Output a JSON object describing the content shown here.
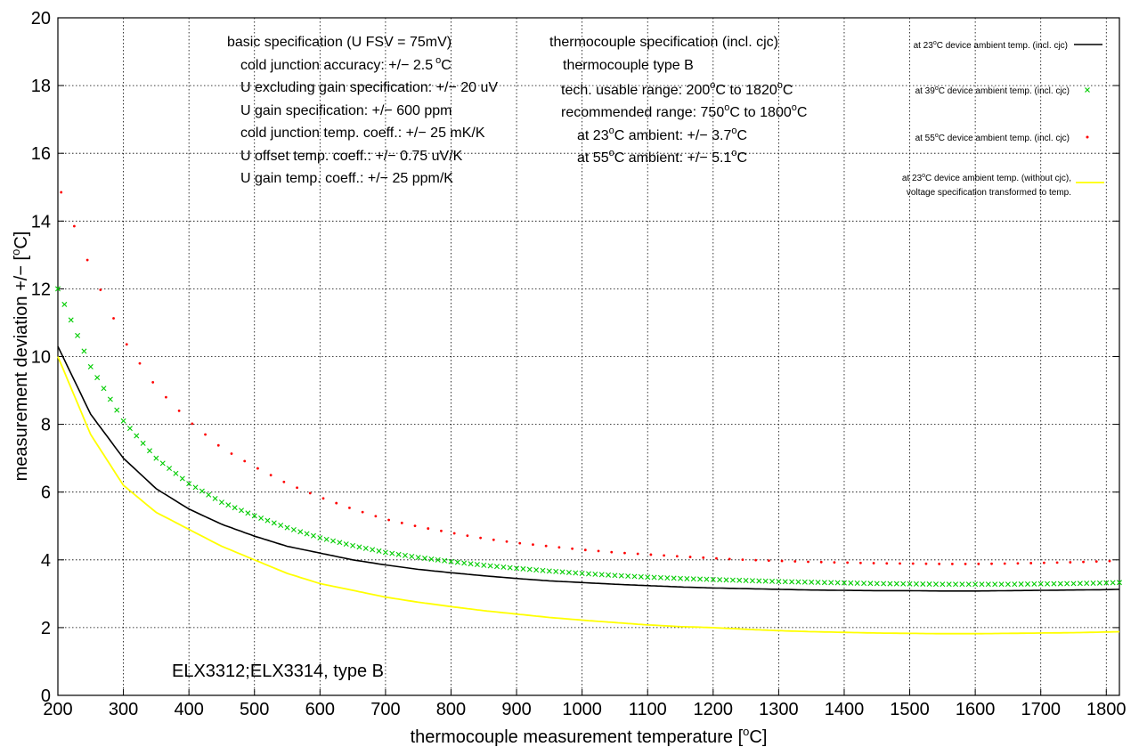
{
  "chart_data": {
    "type": "line",
    "xlabel": "thermocouple measurement temperature [",
    "xlabel_sup": "o",
    "xlabel_end": "C]",
    "ylabel": "measurement deviation +/− [",
    "ylabel_sup": "o",
    "ylabel_end": "C]",
    "xlim": [
      200,
      1820
    ],
    "ylim": [
      0,
      20
    ],
    "xticks": [
      200,
      300,
      400,
      500,
      600,
      700,
      800,
      900,
      1000,
      1100,
      1200,
      1300,
      1400,
      1500,
      1600,
      1700,
      1800
    ],
    "yticks": [
      0,
      2,
      4,
      6,
      8,
      10,
      12,
      14,
      16,
      18,
      20
    ],
    "grid": true,
    "legend_position": "top-right",
    "x": [
      200,
      250,
      300,
      350,
      400,
      450,
      500,
      550,
      600,
      650,
      700,
      750,
      800,
      850,
      900,
      950,
      1000,
      1050,
      1100,
      1150,
      1200,
      1250,
      1300,
      1350,
      1400,
      1450,
      1500,
      1550,
      1600,
      1650,
      1700,
      1750,
      1800,
      1820
    ],
    "series": [
      {
        "name": "at 23",
        "name_sup": "o",
        "name_end": "C device ambient temp. (incl. cjc)",
        "style": "line",
        "color": "#000000",
        "values": [
          10.3,
          8.3,
          7.0,
          6.1,
          5.5,
          5.05,
          4.7,
          4.4,
          4.2,
          4.0,
          3.85,
          3.72,
          3.62,
          3.53,
          3.45,
          3.38,
          3.33,
          3.28,
          3.24,
          3.2,
          3.17,
          3.15,
          3.13,
          3.11,
          3.1,
          3.09,
          3.09,
          3.08,
          3.08,
          3.09,
          3.1,
          3.11,
          3.12,
          3.13
        ]
      },
      {
        "name": "at 39",
        "name_sup": "o",
        "name_end": "C device ambient temp. (incl. cjc)",
        "style": "cross",
        "color": "#00cc00",
        "values": [
          12.0,
          9.7,
          8.1,
          7.0,
          6.25,
          5.7,
          5.3,
          4.95,
          4.65,
          4.42,
          4.22,
          4.07,
          3.95,
          3.84,
          3.75,
          3.67,
          3.6,
          3.54,
          3.49,
          3.45,
          3.42,
          3.39,
          3.36,
          3.34,
          3.32,
          3.3,
          3.29,
          3.28,
          3.28,
          3.28,
          3.29,
          3.3,
          3.32,
          3.33
        ]
      },
      {
        "name": "at 55",
        "name_sup": "o",
        "name_end": "C device ambient temp. (incl. cjc)",
        "style": "dot",
        "color": "#ff0000",
        "values": [
          15.1,
          12.6,
          10.5,
          9.1,
          8.1,
          7.3,
          6.75,
          6.25,
          5.85,
          5.5,
          5.2,
          4.98,
          4.8,
          4.63,
          4.5,
          4.4,
          4.3,
          4.22,
          4.16,
          4.1,
          4.05,
          4.0,
          3.97,
          3.94,
          3.92,
          3.9,
          3.89,
          3.88,
          3.88,
          3.89,
          3.91,
          3.93,
          3.96,
          3.98
        ]
      },
      {
        "name": "at 23",
        "name_sup": "o",
        "name_end": "C device ambient temp. (without cjc),",
        "name_line2": "voltage specification transformed to temp.",
        "style": "line",
        "color": "#ffff00",
        "values": [
          10.0,
          7.7,
          6.2,
          5.4,
          4.9,
          4.4,
          4.0,
          3.6,
          3.3,
          3.1,
          2.9,
          2.75,
          2.62,
          2.5,
          2.4,
          2.3,
          2.22,
          2.15,
          2.08,
          2.03,
          2.0,
          1.95,
          1.91,
          1.88,
          1.86,
          1.84,
          1.83,
          1.82,
          1.82,
          1.83,
          1.84,
          1.85,
          1.87,
          1.88
        ]
      }
    ]
  },
  "basic_spec": {
    "heading": "basic specification (U FSV = 75mV)",
    "line1": "cold junction accuracy: +/− 2.5",
    "line1_sup": "o",
    "line1_end": "C",
    "line2": "U excluding gain specification: +/− 20 uV",
    "line3": "U gain specification: +/− 600 ppm",
    "line4": "cold junction temp. coeff.: +/− 25 mK/K",
    "line5": "U offset temp. coeff.: +/− 0.75 uV/K",
    "line6": "U gain temp. coeff.: +/− 25 ppm/K"
  },
  "tc_spec": {
    "heading": "thermocouple specification (incl. cjc)",
    "line1": "thermocouple type B",
    "line2_a": "tech. usable range: 200",
    "line2_b": "C to 1820",
    "line2_c": "C",
    "line3_a": "recommended range: 750",
    "line3_b": "C to 1800",
    "line3_c": "C",
    "line4_a": "at 23",
    "line4_b": "C ambient: +/− 3.7",
    "line4_c": "C",
    "line5_a": "at 55",
    "line5_b": "C ambient: +/− 5.1",
    "line5_c": "C",
    "sup": "o"
  },
  "annotation": "ELX3312;ELX3314, type B"
}
